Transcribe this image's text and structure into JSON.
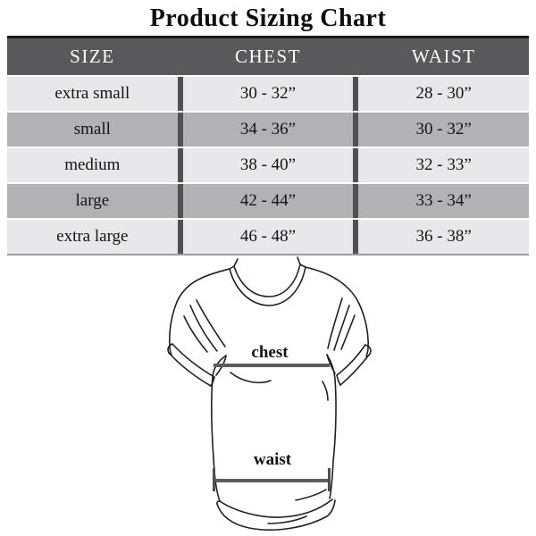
{
  "page": {
    "title": "Product Sizing Chart"
  },
  "chart_data": {
    "type": "table",
    "title": "Product Sizing Chart",
    "columns": [
      "SIZE",
      "CHEST",
      "WAIST"
    ],
    "rows": [
      [
        "extra small",
        "30 - 32”",
        "28 - 30”"
      ],
      [
        "small",
        "34 - 36”",
        "30 - 32”"
      ],
      [
        "medium",
        "38 - 40”",
        "32 - 33”"
      ],
      [
        "large",
        "42 - 44”",
        "33 - 34”"
      ],
      [
        "extra large",
        "46 - 48”",
        "36 - 38”"
      ]
    ]
  },
  "diagram": {
    "chest_label": "chest",
    "waist_label": "waist"
  },
  "colors": {
    "title_color": "#0e0e0e",
    "header_bg": "#59595b",
    "header_text": "#ffffff",
    "row_light": "#e8e8ea",
    "row_alt": "#b2b2b4",
    "divider": "#515153",
    "table_top_border": "#1a1a1a",
    "table_bottom_border": "#9c9c9e",
    "cell_text": "#141414",
    "outline": "#202020",
    "measure_line": "#5c5c5c",
    "measure_tick": "#4e4e4e",
    "label_color": "#131313"
  }
}
